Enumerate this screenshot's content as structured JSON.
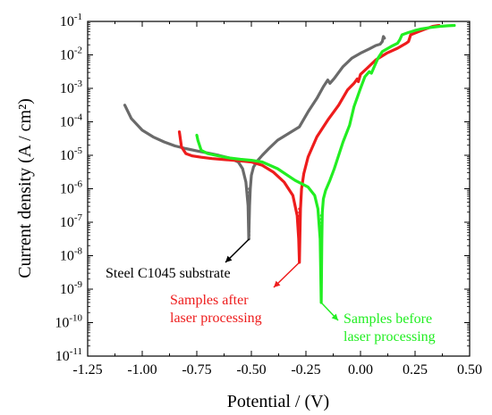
{
  "chart_data": {
    "type": "line",
    "title": "",
    "xlabel": "Potential / (V)",
    "ylabel": "Current density (A / cm²)",
    "xlim": [
      -1.25,
      0.5
    ],
    "ylim_exponent": [
      -11,
      -1
    ],
    "y_scale": "log",
    "x_ticks": [
      "-1.25",
      "-1.00",
      "-0.75",
      "-0.50",
      "-0.25",
      "0.00",
      "0.25",
      "0.50"
    ],
    "x_tick_values": [
      -1.25,
      -1.0,
      -0.75,
      -0.5,
      -0.25,
      0.0,
      0.25,
      0.5
    ],
    "y_tick_exponents": [
      -11,
      -10,
      -9,
      -8,
      -7,
      -6,
      -5,
      -4,
      -3,
      -2,
      -1
    ],
    "grid": false,
    "series": [
      {
        "name": "Steel C1045 substrate",
        "color": "#6a6a6a",
        "x": [
          -1.08,
          -1.05,
          -1.0,
          -0.95,
          -0.9,
          -0.85,
          -0.8,
          -0.75,
          -0.7,
          -0.65,
          -0.6,
          -0.56,
          -0.54,
          -0.525,
          -0.515,
          -0.512,
          -0.508,
          -0.505,
          -0.5,
          -0.49,
          -0.47,
          -0.45,
          -0.42,
          -0.38,
          -0.33,
          -0.28,
          -0.24,
          -0.2,
          -0.17,
          -0.15,
          -0.14,
          -0.12,
          -0.08,
          -0.04,
          0.0,
          0.04,
          0.07,
          0.09,
          0.1,
          0.105,
          0.11
        ],
        "y_log10": [
          -3.5,
          -3.9,
          -4.25,
          -4.45,
          -4.6,
          -4.72,
          -4.8,
          -4.87,
          -4.93,
          -5.0,
          -5.08,
          -5.2,
          -5.4,
          -5.8,
          -6.5,
          -7.5,
          -6.5,
          -6.0,
          -5.6,
          -5.35,
          -5.15,
          -5.0,
          -4.8,
          -4.55,
          -4.35,
          -4.15,
          -3.7,
          -3.3,
          -2.95,
          -2.75,
          -2.85,
          -2.7,
          -2.35,
          -2.1,
          -1.95,
          -1.82,
          -1.72,
          -1.68,
          -1.6,
          -1.45,
          -1.5
        ]
      },
      {
        "name": "Samples after laser processing",
        "color": "#ee1c1c",
        "x": [
          -0.83,
          -0.82,
          -0.8,
          -0.77,
          -0.73,
          -0.68,
          -0.62,
          -0.56,
          -0.5,
          -0.45,
          -0.4,
          -0.35,
          -0.31,
          -0.29,
          -0.283,
          -0.28,
          -0.278,
          -0.275,
          -0.27,
          -0.26,
          -0.24,
          -0.2,
          -0.15,
          -0.1,
          -0.06,
          -0.03,
          -0.015,
          -0.01,
          0.0,
          0.03,
          0.07,
          0.12,
          0.17,
          0.21,
          0.22,
          0.23,
          0.26,
          0.3,
          0.33,
          0.36
        ],
        "y_log10": [
          -4.3,
          -4.75,
          -4.95,
          -5.02,
          -5.06,
          -5.1,
          -5.13,
          -5.16,
          -5.2,
          -5.3,
          -5.5,
          -5.8,
          -6.2,
          -6.8,
          -7.5,
          -8.2,
          -7.5,
          -6.6,
          -6.0,
          -5.55,
          -5.05,
          -4.45,
          -3.95,
          -3.5,
          -3.05,
          -2.85,
          -2.72,
          -2.8,
          -2.58,
          -2.4,
          -2.15,
          -1.95,
          -1.8,
          -1.65,
          -1.6,
          -1.4,
          -1.32,
          -1.22,
          -1.15,
          -1.12
        ]
      },
      {
        "name": "Samples before laser processing",
        "color": "#22ee22",
        "x": [
          -0.75,
          -0.745,
          -0.73,
          -0.7,
          -0.65,
          -0.6,
          -0.55,
          -0.5,
          -0.45,
          -0.38,
          -0.3,
          -0.24,
          -0.21,
          -0.195,
          -0.185,
          -0.18,
          -0.177,
          -0.175,
          -0.17,
          -0.16,
          -0.14,
          -0.12,
          -0.1,
          -0.08,
          -0.05,
          -0.03,
          0.0,
          0.02,
          0.04,
          0.05,
          0.06,
          0.08,
          0.1,
          0.14,
          0.17,
          0.18,
          0.19,
          0.22,
          0.25,
          0.28,
          0.32,
          0.36,
          0.4,
          0.43
        ],
        "y_log10": [
          -4.4,
          -4.55,
          -4.85,
          -4.95,
          -5.02,
          -5.08,
          -5.12,
          -5.15,
          -5.2,
          -5.4,
          -5.75,
          -5.95,
          -6.2,
          -6.6,
          -7.5,
          -9.4,
          -7.5,
          -6.7,
          -6.3,
          -6.05,
          -5.75,
          -5.4,
          -5.0,
          -4.6,
          -4.1,
          -3.55,
          -3.0,
          -2.65,
          -2.5,
          -2.55,
          -2.4,
          -2.1,
          -1.9,
          -1.75,
          -1.65,
          -1.55,
          -1.4,
          -1.33,
          -1.27,
          -1.22,
          -1.18,
          -1.15,
          -1.13,
          -1.12
        ]
      }
    ],
    "markers": [
      {
        "series": 0,
        "x": -0.51,
        "y_top": -6.0,
        "y_bottom": -7.5
      },
      {
        "series": 1,
        "x": -0.28,
        "y_top": -6.6,
        "y_bottom": -8.2
      },
      {
        "series": 2,
        "x": -0.18,
        "y_top": -6.8,
        "y_bottom": -9.4
      }
    ],
    "annotations": [
      {
        "lines": [
          "Steel C1045 substrate"
        ],
        "color": "#000000"
      },
      {
        "lines": [
          "Samples after",
          "laser processing"
        ],
        "color": "#ee1c1c"
      },
      {
        "lines": [
          "Samples before",
          "laser processing"
        ],
        "color": "#22ee22"
      }
    ]
  }
}
